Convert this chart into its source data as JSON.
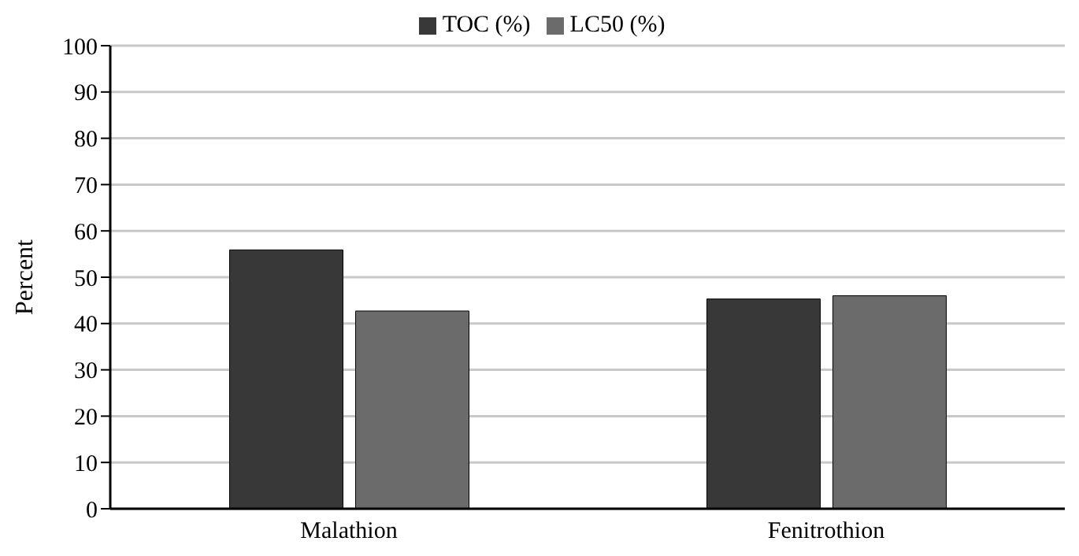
{
  "chart_data": {
    "type": "bar",
    "ylabel": "Percent",
    "categories": [
      "Malathion",
      "Fenitrothion"
    ],
    "series": [
      {
        "name": "TOC (%)",
        "color": "#383838",
        "values": [
          55.9,
          45.3
        ]
      },
      {
        "name": "LC50 (%)",
        "color": "#6b6b6b",
        "values": [
          42.7,
          46.0
        ]
      }
    ],
    "ylim": [
      0,
      100
    ],
    "yticks": [
      0,
      10,
      20,
      30,
      40,
      50,
      60,
      70,
      80,
      90,
      100
    ],
    "grid": "y",
    "legend": "top"
  }
}
